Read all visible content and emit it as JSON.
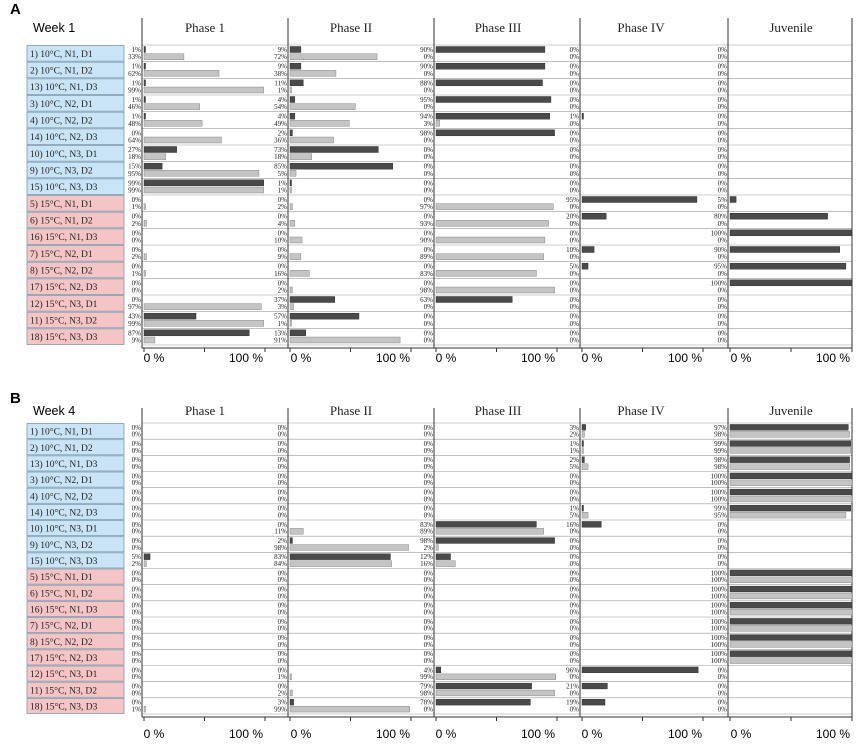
{
  "panel_letters": [
    "A",
    "B"
  ],
  "phase_titles": [
    "Phase 1",
    "Phase II",
    "Phase III",
    "Phase IV",
    "Juvenile"
  ],
  "axis_tick_labels": [
    "0 %",
    "100 %"
  ],
  "colors": {
    "dark_bar": "#4a4a4a",
    "light_bar": "#c4c4c4",
    "label_blue": "#c8e4f6",
    "label_pink": "#f5c4c4",
    "label_border": "#7f9ab0"
  },
  "row_labels": [
    "1) 10°C, N1, D1",
    "2) 10°C, N1, D2",
    "13) 10°C, N1, D3",
    "3) 10°C, N2, D1",
    "4) 10°C, N2, D2",
    "14) 10°C, N2, D3",
    "10) 10°C, N3, D1",
    "9) 10°C, N3, D2",
    "15) 10°C, N3, D3",
    "5) 15°C, N1, D1",
    "6) 15°C, N1, D2",
    "16) 15°C, N1, D3",
    "7) 15°C, N2, D1",
    "8) 15°C, N2, D2",
    "17) 15°C, N2, D3",
    "12) 15°C, N3, D1",
    "11) 15°C, N3, D2",
    "18) 15°C, N3, D3"
  ],
  "row_groups": [
    "10°C",
    "10°C",
    "10°C",
    "10°C",
    "10°C",
    "10°C",
    "10°C",
    "10°C",
    "10°C",
    "15°C",
    "15°C",
    "15°C",
    "15°C",
    "15°C",
    "15°C",
    "15°C",
    "15°C",
    "15°C"
  ],
  "chart_data": [
    {
      "type": "bar",
      "orientation": "horizontal",
      "panel": "A",
      "title": "Week 1",
      "series": [
        "dark",
        "light"
      ],
      "xlim": [
        0,
        100
      ],
      "phases": [
        {
          "name": "Phase 1",
          "dark": [
            1,
            1,
            1,
            1,
            1,
            0,
            27,
            15,
            99,
            0,
            0,
            0,
            0,
            0,
            0,
            0,
            43,
            87
          ],
          "light": [
            33,
            62,
            99,
            46,
            48,
            64,
            18,
            95,
            99,
            1,
            2,
            0,
            2,
            1,
            0,
            97,
            99,
            9
          ]
        },
        {
          "name": "Phase II",
          "dark": [
            9,
            9,
            11,
            4,
            4,
            2,
            73,
            85,
            1,
            0,
            0,
            0,
            0,
            0,
            0,
            37,
            57,
            13
          ],
          "light": [
            72,
            38,
            1,
            54,
            49,
            36,
            18,
            5,
            1,
            2,
            4,
            10,
            9,
            16,
            2,
            3,
            1,
            91
          ]
        },
        {
          "name": "Phase III",
          "dark": [
            90,
            90,
            88,
            95,
            94,
            98,
            0,
            0,
            0,
            0,
            0,
            0,
            0,
            0,
            0,
            63,
            0,
            0
          ],
          "light": [
            0,
            0,
            0,
            0,
            3,
            0,
            0,
            0,
            0,
            97,
            93,
            90,
            89,
            83,
            98,
            0,
            0,
            0
          ]
        },
        {
          "name": "Phase IV",
          "dark": [
            0,
            0,
            0,
            0,
            1,
            0,
            0,
            0,
            0,
            95,
            20,
            0,
            10,
            5,
            0,
            0,
            0,
            0
          ],
          "light": [
            0,
            0,
            0,
            0,
            0,
            0,
            0,
            0,
            0,
            0,
            0,
            0,
            0,
            0,
            0,
            0,
            0,
            0
          ]
        },
        {
          "name": "Juvenile",
          "dark": [
            0,
            0,
            0,
            0,
            0,
            0,
            0,
            0,
            0,
            5,
            80,
            100,
            90,
            95,
            100,
            0,
            0,
            0
          ],
          "light": [
            0,
            0,
            0,
            0,
            0,
            0,
            0,
            0,
            0,
            0,
            0,
            0,
            0,
            0,
            0,
            0,
            0,
            0
          ]
        }
      ]
    },
    {
      "type": "bar",
      "orientation": "horizontal",
      "panel": "B",
      "title": "Week 4",
      "series": [
        "dark",
        "light"
      ],
      "xlim": [
        0,
        100
      ],
      "phases": [
        {
          "name": "Phase 1",
          "dark": [
            0,
            0,
            0,
            0,
            0,
            0,
            0,
            0,
            5,
            0,
            0,
            0,
            0,
            0,
            0,
            0,
            0,
            0
          ],
          "light": [
            0,
            0,
            0,
            0,
            0,
            0,
            0,
            0,
            2,
            0,
            0,
            0,
            0,
            0,
            0,
            0,
            0,
            1
          ]
        },
        {
          "name": "Phase II",
          "dark": [
            0,
            0,
            0,
            0,
            0,
            0,
            0,
            2,
            83,
            0,
            0,
            0,
            0,
            0,
            0,
            0,
            0,
            3
          ],
          "light": [
            0,
            0,
            0,
            0,
            0,
            0,
            11,
            98,
            84,
            0,
            0,
            0,
            0,
            0,
            0,
            1,
            2,
            99
          ]
        },
        {
          "name": "Phase III",
          "dark": [
            0,
            0,
            0,
            0,
            0,
            0,
            83,
            98,
            12,
            0,
            0,
            0,
            0,
            0,
            0,
            4,
            79,
            78
          ],
          "light": [
            0,
            0,
            0,
            0,
            0,
            0,
            89,
            2,
            16,
            0,
            0,
            0,
            0,
            0,
            0,
            99,
            98,
            0
          ]
        },
        {
          "name": "Phase IV",
          "dark": [
            3,
            1,
            2,
            0,
            0,
            1,
            16,
            0,
            0,
            0,
            0,
            0,
            0,
            0,
            0,
            96,
            21,
            19
          ],
          "light": [
            2,
            1,
            5,
            0,
            0,
            5,
            0,
            0,
            0,
            0,
            0,
            0,
            0,
            0,
            0,
            0,
            0,
            0
          ]
        },
        {
          "name": "Juvenile",
          "dark": [
            97,
            99,
            98,
            100,
            100,
            99,
            0,
            0,
            0,
            100,
            100,
            100,
            100,
            100,
            100,
            0,
            0,
            0
          ],
          "light": [
            98,
            99,
            98,
            100,
            100,
            95,
            0,
            0,
            0,
            100,
            100,
            100,
            100,
            100,
            100,
            0,
            0,
            0
          ]
        }
      ]
    }
  ]
}
